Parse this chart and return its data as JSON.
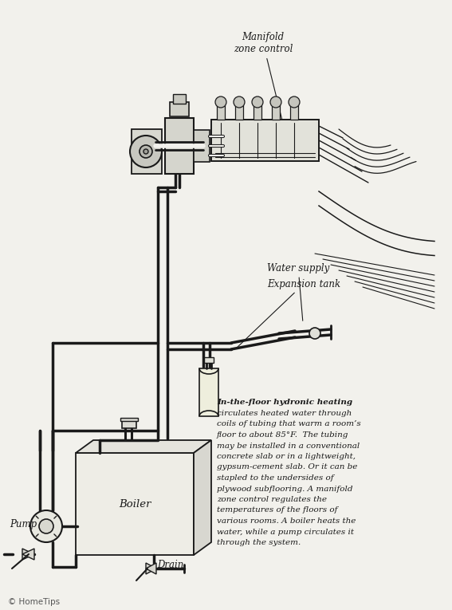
{
  "background_color": "#f2f1ec",
  "line_color": "#1a1a1a",
  "text_color": "#1a1a1a",
  "fig_width": 5.67,
  "fig_height": 7.65,
  "dpi": 100,
  "labels": {
    "manifold_zone_control": "Manifold\nzone control",
    "water_supply": "Water supply",
    "expansion_tank": "Expansion tank",
    "pump": "Pump",
    "boiler": "Boiler",
    "drain": "Drain",
    "copyright": "© HomeTips"
  },
  "description_bold": "In-the-floor hydronic heating",
  "description_lines": [
    "circulates heated water through",
    "coils of tubing that warm a room’s",
    "floor to about 85°F.  The tubing",
    "may be installed in a conventional",
    "concrete slab or in a lightweight,",
    "gypsum-cement slab. Or it can be",
    "stapled to the undersides of",
    "plywood subflooring. A manifold",
    "zone control regulates the",
    "temperatures of the floors of",
    "various rooms. A boiler heats the",
    "water, while a pump circulates it",
    "through the system."
  ]
}
